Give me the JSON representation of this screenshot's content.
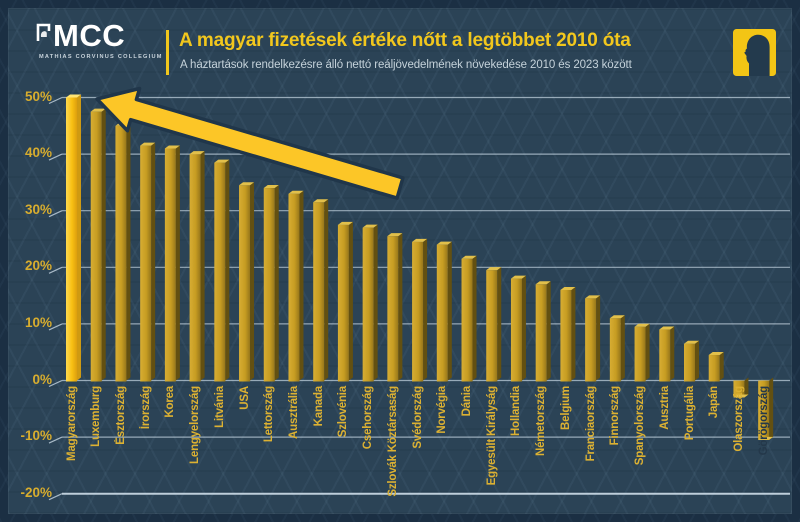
{
  "header": {
    "logo_text": "MCC",
    "logo_subtext": "MATHIAS CORVINUS COLLEGIUM",
    "title": "A magyar fizetések értéke nőtt a legtöbbet 2010 óta",
    "subtitle": "A háztartások rendelkezésre álló nettó reáljövedelmének növekedése 2010 és 2023 között"
  },
  "colors": {
    "background": "#2b4356",
    "frame_border": "#1b2f43",
    "accent_yellow": "#f2c71d",
    "highlight_bar": "#f8c013",
    "bar_gold": "#c79d22",
    "bar_side": "#635011",
    "gridline": "#c6d6e2",
    "axis_label_gold": "#d8ad2e",
    "subtitle_text": "#c5d2da",
    "dark_label_on_bar": "#24384a",
    "arrow_yellow": "#fcc627",
    "arrow_outline": "#20364a"
  },
  "chart_data": {
    "type": "bar",
    "title": "A magyar fizetések értéke nőtt a legtöbbet 2010 óta",
    "subtitle": "A háztartások rendelkezésre álló nettó reáljövedelmének növekedése 2010 és 2023 között",
    "unit": "%",
    "categories": [
      "Magyarország",
      "Luxemburg",
      "Észtország",
      "Írország",
      "Korea",
      "Lengyelország",
      "Litvánia",
      "USA",
      "Lettország",
      "Ausztrália",
      "Kanada",
      "Szlovénia",
      "Csehország",
      "Szlovák Köztársaság",
      "Svédország",
      "Norvégia",
      "Dánia",
      "Egyesült Királyság",
      "Hollandia",
      "Németország",
      "Belgium",
      "Franciaország",
      "Finnország",
      "Spanyolország",
      "Ausztria",
      "Portugália",
      "Japán",
      "Olaszország",
      "Görögország"
    ],
    "values": [
      50,
      47.5,
      45,
      41.5,
      41,
      40,
      38.5,
      34.5,
      34,
      33,
      31.5,
      27.5,
      27,
      25.5,
      24.5,
      24,
      21.5,
      19.5,
      18,
      17,
      16,
      14.5,
      11,
      9.5,
      9,
      6.5,
      4.5,
      -3,
      -10.5
    ],
    "highlight_index": 0,
    "dark_label_index": 28,
    "ylim": [
      -20,
      50
    ],
    "ytick_labels": [
      "50%",
      "40%",
      "30%",
      "20%",
      "10%",
      "0%",
      "-10%",
      "-20%"
    ],
    "ytick_values": [
      50,
      40,
      30,
      20,
      10,
      0,
      -10,
      -20
    ],
    "grid": true,
    "legend": "none",
    "annotation": "large yellow arrow pointing from lower right up toward the first (Hungarian) bar"
  }
}
